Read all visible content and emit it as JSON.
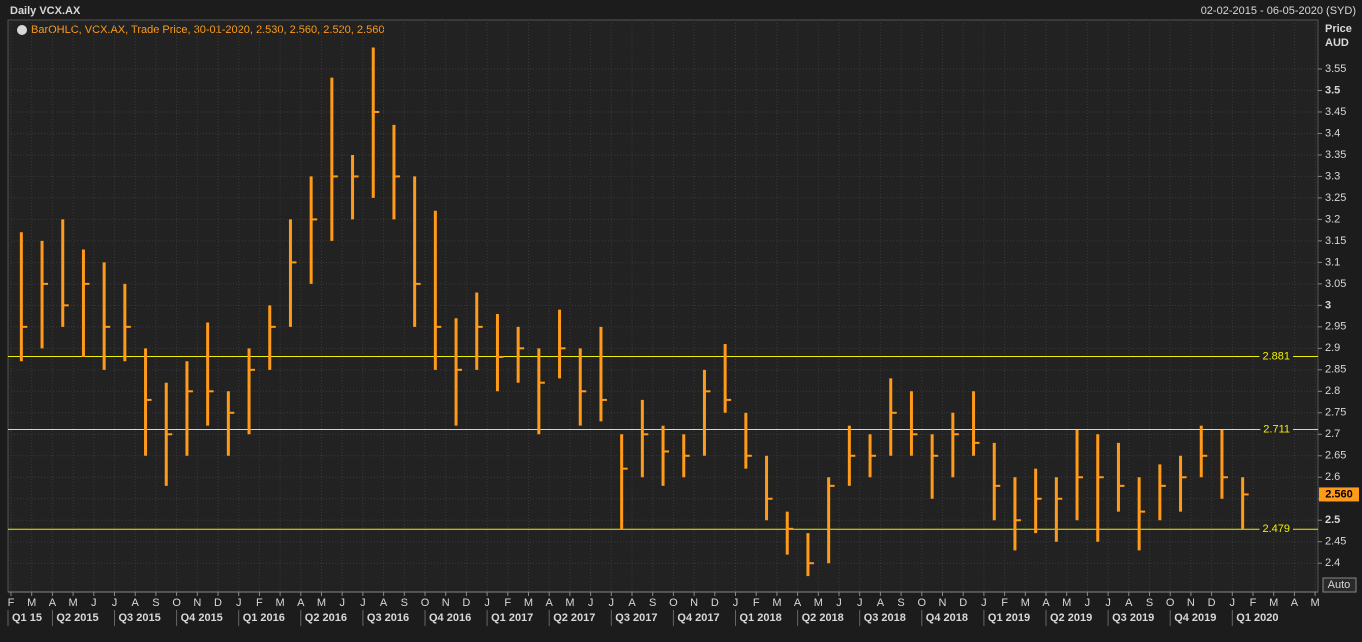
{
  "chart_data": {
    "type": "ohlc",
    "title": "Daily VCX.AX",
    "date_range": "02-02-2015 - 06-05-2020 (SYD)",
    "legend": "BarOHLC, VCX.AX, Trade Price, 30-01-2020, 2.530, 2.560, 2.520, 2.560",
    "y_axis_title": [
      "Price",
      "AUD"
    ],
    "auto_button": "Auto",
    "color": "#ff9a1a",
    "categories": [
      "F",
      "M",
      "A",
      "M",
      "J",
      "J",
      "A",
      "S",
      "O",
      "N",
      "D",
      "J",
      "F",
      "M",
      "A",
      "M",
      "J",
      "J",
      "A",
      "S",
      "O",
      "N",
      "D",
      "J",
      "F",
      "M",
      "A",
      "M",
      "J",
      "J",
      "A",
      "S",
      "O",
      "N",
      "D",
      "J",
      "F",
      "M",
      "A",
      "M",
      "J",
      "J",
      "A",
      "S",
      "O",
      "N",
      "D",
      "J",
      "F",
      "M",
      "A",
      "M",
      "J",
      "J",
      "A",
      "S",
      "O",
      "N",
      "D",
      "J",
      "F",
      "M",
      "A",
      "M"
    ],
    "quarter_labels": [
      "Q1 15",
      "Q2 2015",
      "Q3 2015",
      "Q4 2015",
      "Q1 2016",
      "Q2 2016",
      "Q3 2016",
      "Q4 2016",
      "Q1 2017",
      "Q2 2017",
      "Q3 2017",
      "Q4 2017",
      "Q1 2018",
      "Q2 2018",
      "Q3 2018",
      "Q4 2018",
      "Q1 2019",
      "Q2 2019",
      "Q3 2019",
      "Q4 2019",
      "Q1 2020"
    ],
    "high": [
      3.17,
      3.15,
      3.2,
      3.13,
      3.1,
      3.05,
      2.9,
      2.82,
      2.87,
      2.96,
      2.8,
      2.9,
      3.0,
      3.2,
      3.3,
      3.53,
      3.35,
      3.6,
      3.42,
      3.3,
      3.22,
      2.97,
      3.03,
      2.98,
      2.95,
      2.9,
      2.99,
      2.9,
      2.95,
      2.7,
      2.78,
      2.72,
      2.7,
      2.85,
      2.91,
      2.75,
      2.65,
      2.52,
      2.47,
      2.6,
      2.72,
      2.7,
      2.83,
      2.8,
      2.7,
      2.75,
      2.8,
      2.68,
      2.6,
      2.62,
      2.6,
      2.71,
      2.7,
      2.68,
      2.6,
      2.63,
      2.65,
      2.72,
      2.71,
      2.6,
      null,
      null,
      null,
      null
    ],
    "low": [
      2.87,
      2.9,
      2.95,
      2.88,
      2.85,
      2.87,
      2.65,
      2.58,
      2.65,
      2.72,
      2.65,
      2.7,
      2.85,
      2.95,
      3.05,
      3.15,
      3.2,
      3.25,
      3.2,
      2.95,
      2.85,
      2.72,
      2.85,
      2.8,
      2.82,
      2.7,
      2.83,
      2.72,
      2.73,
      2.48,
      2.6,
      2.58,
      2.6,
      2.65,
      2.75,
      2.62,
      2.5,
      2.42,
      2.37,
      2.4,
      2.58,
      2.6,
      2.65,
      2.65,
      2.55,
      2.6,
      2.65,
      2.5,
      2.43,
      2.47,
      2.45,
      2.5,
      2.45,
      2.52,
      2.43,
      2.5,
      2.52,
      2.6,
      2.55,
      2.48,
      null,
      null,
      null,
      null
    ],
    "close": [
      2.95,
      3.05,
      3.0,
      3.05,
      2.95,
      2.95,
      2.78,
      2.7,
      2.8,
      2.8,
      2.75,
      2.85,
      2.95,
      3.1,
      3.2,
      3.3,
      3.3,
      3.45,
      3.3,
      3.05,
      2.95,
      2.85,
      2.95,
      2.88,
      2.9,
      2.82,
      2.9,
      2.8,
      2.78,
      2.62,
      2.7,
      2.66,
      2.65,
      2.8,
      2.78,
      2.65,
      2.55,
      2.48,
      2.4,
      2.58,
      2.65,
      2.65,
      2.75,
      2.7,
      2.65,
      2.7,
      2.68,
      2.58,
      2.5,
      2.55,
      2.55,
      2.6,
      2.6,
      2.58,
      2.52,
      2.58,
      2.6,
      2.65,
      2.6,
      2.56,
      null,
      null,
      null,
      null
    ],
    "reference_lines": [
      2.881,
      2.711,
      2.479
    ],
    "reference_color": "#f0f000",
    "last_price": {
      "value": 2.56,
      "label": "2.560"
    },
    "ylim": [
      2.333,
      3.664
    ],
    "yticks": [
      2.4,
      2.45,
      2.5,
      2.55,
      2.6,
      2.65,
      2.7,
      2.75,
      2.8,
      2.85,
      2.9,
      2.95,
      3,
      3.05,
      3.1,
      3.15,
      3.2,
      3.25,
      3.3,
      3.35,
      3.4,
      3.45,
      3.5,
      3.55
    ],
    "grid": true
  }
}
